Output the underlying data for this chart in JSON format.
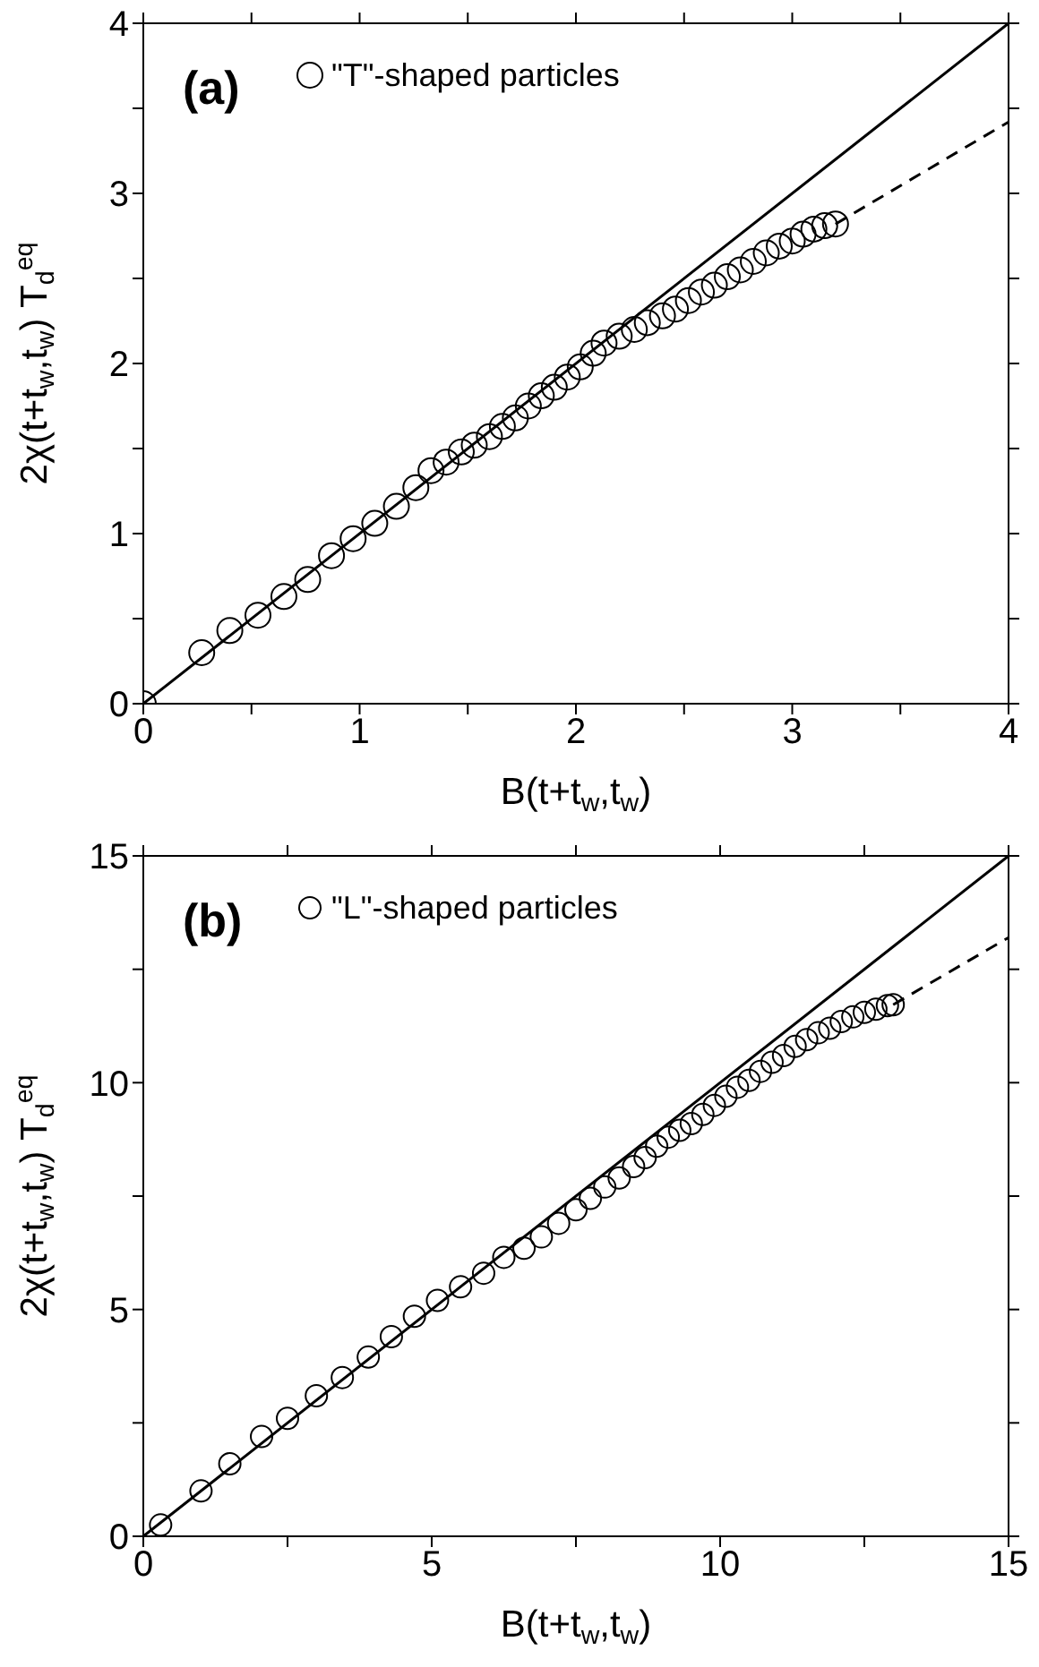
{
  "chart_data": [
    {
      "type": "scatter",
      "xlabel": "B(t+t$_{w}$,t$_{w}$)",
      "ylabel": "2χ(t+t$_{w}$,t$_{w}$) T$_{d}$$^{eq}$",
      "annotations": [
        "(a)"
      ],
      "legend": "top left",
      "xlim": [
        0,
        4
      ],
      "ylim": [
        0,
        4
      ],
      "xticks": [
        0,
        {
          "value": 0.5,
          "label": null
        },
        1,
        {
          "value": 1.5,
          "label": null
        },
        2,
        {
          "value": 2.5,
          "label": null
        },
        3,
        {
          "value": 3.5,
          "label": null
        },
        4
      ],
      "yticks": [
        0,
        {
          "value": 0.5,
          "label": null
        },
        1,
        {
          "value": 1.5,
          "label": null
        },
        2,
        {
          "value": 2.5,
          "label": null
        },
        3,
        {
          "value": 3.5,
          "label": null
        },
        4
      ],
      "series": [
        {
          "name": "\"T\"-shaped particles",
          "color": "#000000",
          "marker": "circle",
          "x": [
            0,
            0.27,
            0.4,
            0.53,
            0.65,
            0.76,
            0.87,
            0.97,
            1.07,
            1.17,
            1.26,
            1.33,
            1.4,
            1.47,
            1.53,
            1.6,
            1.66,
            1.72,
            1.78,
            1.84,
            1.9,
            1.96,
            2.02,
            2.08,
            2.13,
            2.2,
            2.27,
            2.33,
            2.4,
            2.46,
            2.52,
            2.58,
            2.64,
            2.7,
            2.76,
            2.82,
            2.88,
            2.94,
            3.0,
            3.05,
            3.1,
            3.15,
            3.2
          ],
          "values": [
            0,
            0.3,
            0.43,
            0.52,
            0.63,
            0.73,
            0.87,
            0.97,
            1.06,
            1.16,
            1.27,
            1.37,
            1.42,
            1.48,
            1.52,
            1.57,
            1.63,
            1.68,
            1.75,
            1.81,
            1.86,
            1.92,
            1.98,
            2.06,
            2.12,
            2.16,
            2.2,
            2.24,
            2.28,
            2.32,
            2.37,
            2.42,
            2.46,
            2.51,
            2.55,
            2.6,
            2.65,
            2.69,
            2.72,
            2.76,
            2.79,
            2.81,
            2.82
          ]
        },
        {
          "type": "line",
          "color": "#000000",
          "line_style": "solid",
          "marker": "none",
          "x": [
            0,
            4
          ],
          "values": [
            0,
            4
          ]
        },
        {
          "type": "line",
          "color": "#000000",
          "line_style": "dashed",
          "marker": "none",
          "x": [
            3.2,
            4
          ],
          "values": [
            2.82,
            3.42
          ]
        }
      ]
    },
    {
      "type": "scatter",
      "xlabel": "B(t+t$_{w}$,t$_{w}$)",
      "ylabel": "2χ(t+t$_{w}$,t$_{w}$) T$_{d}$$^{eq}$",
      "annotations": [
        "(b)"
      ],
      "legend": "top left",
      "xlim": [
        0,
        15
      ],
      "ylim": [
        0,
        15
      ],
      "xticks": [
        0,
        {
          "value": 2.5,
          "label": null
        },
        5,
        {
          "value": 7.5,
          "label": null
        },
        10,
        {
          "value": 12.5,
          "label": null
        },
        15
      ],
      "yticks": [
        0,
        {
          "value": 2.5,
          "label": null
        },
        5,
        {
          "value": 7.5,
          "label": null
        },
        10,
        {
          "value": 12.5,
          "label": null
        },
        15
      ],
      "series": [
        {
          "name": "\"L\"-shaped particles",
          "color": "#000000",
          "marker": "circle",
          "x": [
            0.3,
            1.0,
            1.5,
            2.05,
            2.5,
            3.0,
            3.45,
            3.9,
            4.3,
            4.7,
            5.1,
            5.5,
            5.9,
            6.25,
            6.6,
            6.9,
            7.2,
            7.5,
            7.75,
            8.0,
            8.25,
            8.5,
            8.7,
            8.9,
            9.1,
            9.3,
            9.5,
            9.7,
            9.9,
            10.1,
            10.3,
            10.5,
            10.7,
            10.9,
            11.1,
            11.3,
            11.5,
            11.7,
            11.9,
            12.1,
            12.3,
            12.5,
            12.7,
            12.9,
            13.0
          ],
          "values": [
            0.25,
            1.0,
            1.6,
            2.2,
            2.6,
            3.1,
            3.5,
            3.95,
            4.4,
            4.85,
            5.2,
            5.5,
            5.8,
            6.15,
            6.35,
            6.6,
            6.9,
            7.2,
            7.45,
            7.7,
            7.9,
            8.15,
            8.35,
            8.6,
            8.8,
            8.95,
            9.1,
            9.3,
            9.5,
            9.7,
            9.9,
            10.05,
            10.25,
            10.45,
            10.6,
            10.8,
            10.95,
            11.1,
            11.2,
            11.35,
            11.45,
            11.55,
            11.62,
            11.7,
            11.72
          ]
        },
        {
          "type": "line",
          "color": "#000000",
          "line_style": "solid",
          "marker": "none",
          "x": [
            0,
            15
          ],
          "values": [
            0,
            15
          ]
        },
        {
          "type": "line",
          "color": "#000000",
          "line_style": "dashed",
          "marker": "none",
          "x": [
            13.0,
            15
          ],
          "values": [
            11.72,
            13.2
          ]
        }
      ]
    }
  ]
}
